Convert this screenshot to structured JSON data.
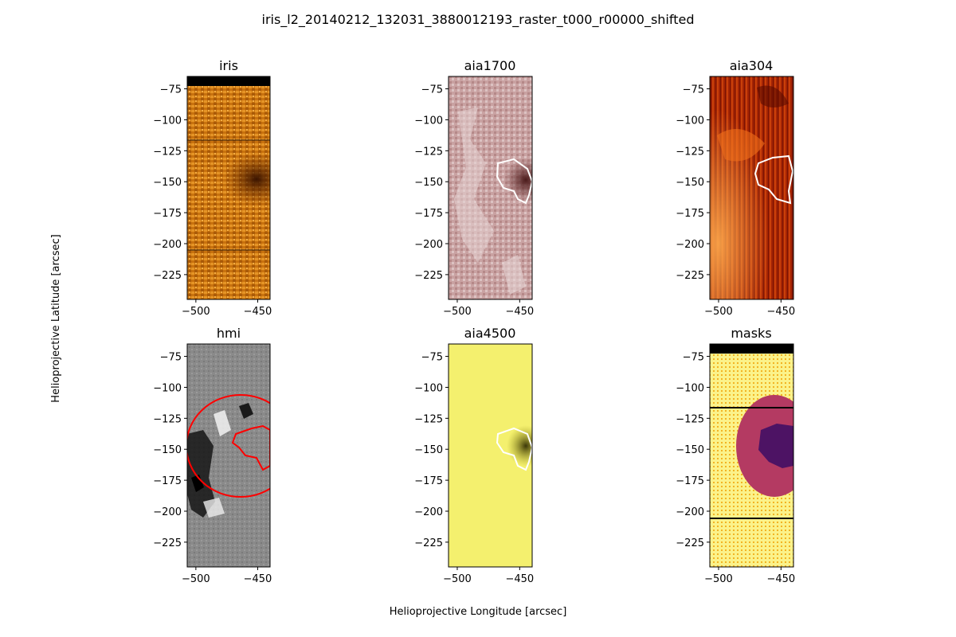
{
  "figure": {
    "title": "iris_l2_20140212_132031_3880012193_raster_t000_r00000_shifted",
    "xlabel": "Helioprojective Longitude [arcsec]",
    "ylabel": "Helioprojective Latitude [arcsec]"
  },
  "chart_data": {
    "type": "heatmap",
    "grid": "2x3",
    "xlim": [
      -507,
      -440
    ],
    "ylim": [
      -245,
      -65
    ],
    "xticks": [
      -500,
      -450
    ],
    "yticks": [
      -75,
      -100,
      -125,
      -150,
      -175,
      -200,
      -225
    ],
    "xtick_labels": [
      "−500",
      "−450"
    ],
    "ytick_labels": [
      "−75",
      "−100",
      "−125",
      "−150",
      "−175",
      "−200",
      "−225"
    ],
    "panels": [
      {
        "title": "iris",
        "colors": {
          "base": "#c8720e",
          "light": "#f0a83a",
          "dark": "#5a2400"
        }
      },
      {
        "title": "aia1700",
        "colors": {
          "base": "#cba8a8",
          "light": "#eadada",
          "dark": "#5e2e2e"
        }
      },
      {
        "title": "aia304",
        "colors": {
          "base": "#b52d05",
          "light": "#fda94d",
          "dark": "#3c0600"
        }
      },
      {
        "title": "hmi",
        "colors": {
          "base": "#8a8a8a",
          "light": "#f0f0f0",
          "dark": "#101010"
        }
      },
      {
        "title": "aia4500",
        "colors": {
          "base": "#f4f06e",
          "light": "#fbf98c",
          "dark": "#4a4410"
        }
      },
      {
        "title": "masks",
        "colors": {
          "base": "#fbf28a",
          "light": "#f2b423",
          "dark": "#4d1364"
        }
      }
    ]
  }
}
